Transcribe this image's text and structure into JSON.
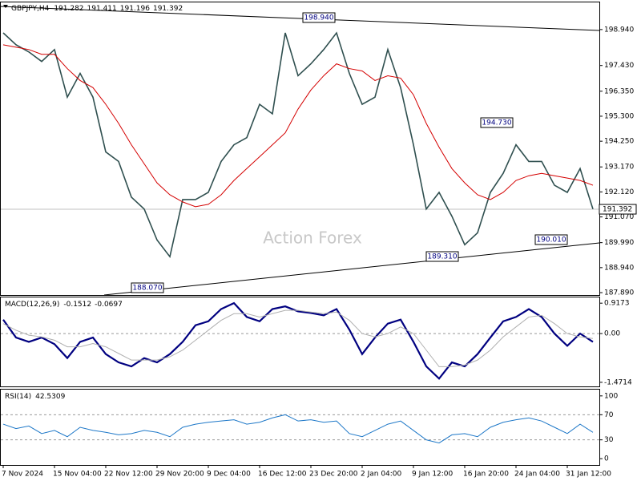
{
  "chart_data": [
    {
      "type": "line",
      "title": "GBPJPY,H4",
      "ohlc": [
        191.282,
        191.411,
        191.196,
        191.392
      ],
      "categories": [
        "7 Nov 2024",
        null,
        null,
        null,
        "15 Nov 04:00",
        null,
        null,
        null,
        "22 Nov 12:00",
        null,
        null,
        null,
        "29 Nov 20:00",
        null,
        null,
        null,
        "9 Dec 04:00",
        null,
        null,
        null,
        "16 Dec 12:00",
        null,
        null,
        null,
        "23 Dec 20:00",
        null,
        null,
        null,
        "2 Jan 04:00",
        null,
        null,
        null,
        "9 Jan 12:00",
        null,
        null,
        null,
        "16 Jan 20:00",
        null,
        null,
        null,
        "24 Jan 04:00",
        null,
        null,
        null,
        "31 Jan 12:00",
        null,
        null
      ],
      "series": [
        {
          "color": "#2f4f4f",
          "values": [
            198.8,
            198.3,
            198.0,
            197.6,
            198.1,
            196.1,
            197.1,
            196.1,
            193.8,
            193.4,
            191.9,
            191.4,
            190.1,
            189.4,
            191.8,
            191.8,
            192.1,
            193.4,
            194.1,
            194.4,
            195.8,
            195.4,
            198.8,
            197.0,
            197.5,
            198.1,
            198.8,
            197.1,
            195.8,
            196.1,
            198.1,
            196.5,
            194.1,
            191.4,
            192.1,
            191.1,
            189.9,
            190.4,
            192.1,
            192.9,
            194.1,
            193.4,
            193.4,
            192.4,
            192.1,
            193.1,
            191.4
          ]
        },
        {
          "color": "#d40000",
          "values": [
            198.3,
            198.2,
            198.1,
            197.9,
            197.9,
            197.3,
            196.8,
            196.5,
            195.8,
            195.0,
            194.1,
            193.3,
            192.5,
            192.0,
            191.7,
            191.5,
            191.6,
            192.0,
            192.6,
            193.1,
            193.6,
            194.1,
            194.6,
            195.6,
            196.4,
            197.0,
            197.5,
            197.3,
            197.2,
            196.8,
            197.0,
            196.9,
            196.2,
            195.0,
            194.0,
            193.1,
            192.5,
            192.0,
            191.8,
            192.1,
            192.6,
            192.8,
            192.9,
            192.8,
            192.7,
            192.6,
            192.4
          ]
        }
      ],
      "ylim": [
        187.79,
        200.08
      ],
      "yticks": [
        {
          "value": 198.94,
          "label": "198.940"
        },
        {
          "value": 197.43,
          "label": "197.430"
        },
        {
          "value": 196.35,
          "label": "196.350"
        },
        {
          "value": 195.3,
          "label": "195.300"
        },
        {
          "value": 194.25,
          "label": "194.250"
        },
        {
          "value": 193.17,
          "label": "193.170"
        },
        {
          "value": 192.12,
          "label": "192.120"
        },
        {
          "value": 191.07,
          "label": "191.070"
        },
        {
          "value": 189.99,
          "label": "189.990"
        },
        {
          "value": 188.94,
          "label": "188.940"
        },
        {
          "value": 187.89,
          "label": "187.890"
        }
      ],
      "current_price": {
        "value": 191.392,
        "label": "191.392"
      },
      "annotations": [
        {
          "value": 198.94,
          "label": "198.940"
        },
        {
          "value": 188.07,
          "label": "188.070"
        },
        {
          "value": 194.73,
          "label": "194.730"
        },
        {
          "value": 190.01,
          "label": "190.010"
        },
        {
          "value": 189.31,
          "label": "189.310"
        }
      ],
      "watermark": "Action Forex"
    },
    {
      "type": "line",
      "title": "MACD(12,26,9)",
      "readings": [
        -0.1512,
        -0.0697
      ],
      "series": [
        {
          "color": "#000080",
          "values": [
            0.42,
            -0.12,
            -0.25,
            -0.12,
            -0.32,
            -0.74,
            -0.25,
            -0.12,
            -0.62,
            -0.87,
            -0.99,
            -0.74,
            -0.87,
            -0.62,
            -0.25,
            0.25,
            0.37,
            0.74,
            0.92,
            0.5,
            0.37,
            0.74,
            0.82,
            0.67,
            0.62,
            0.55,
            0.74,
            0.12,
            -0.62,
            -0.12,
            0.3,
            0.42,
            -0.25,
            -0.99,
            -1.36,
            -0.87,
            -0.99,
            -0.62,
            -0.12,
            0.37,
            0.5,
            0.74,
            0.5,
            0.0,
            -0.37,
            0.0,
            -0.25
          ]
        },
        {
          "color": "#b0b0b0",
          "values": [
            0.3,
            0.1,
            -0.05,
            -0.1,
            -0.2,
            -0.4,
            -0.4,
            -0.3,
            -0.4,
            -0.6,
            -0.8,
            -0.8,
            -0.8,
            -0.7,
            -0.5,
            -0.2,
            0.1,
            0.4,
            0.6,
            0.6,
            0.5,
            0.6,
            0.7,
            0.7,
            0.65,
            0.6,
            0.65,
            0.4,
            0.0,
            -0.1,
            0.0,
            0.2,
            0.0,
            -0.5,
            -1.0,
            -1.0,
            -0.95,
            -0.8,
            -0.5,
            -0.1,
            0.2,
            0.5,
            0.55,
            0.3,
            0.0,
            -0.1,
            -0.15
          ]
        }
      ],
      "ylim": [
        -1.595,
        1.091
      ],
      "yticks": [
        0.9173,
        {
          "value": 0,
          "label": "0.00"
        },
        -1.4714
      ]
    },
    {
      "type": "line",
      "title": "RSI(14)",
      "readings": [
        42.5309
      ],
      "series": [
        {
          "color": "#1e78c8",
          "values": [
            55,
            48,
            52,
            40,
            45,
            35,
            50,
            45,
            42,
            38,
            40,
            45,
            42,
            35,
            50,
            55,
            58,
            60,
            62,
            55,
            58,
            65,
            70,
            60,
            62,
            58,
            60,
            40,
            35,
            45,
            55,
            60,
            45,
            30,
            25,
            38,
            40,
            35,
            50,
            58,
            62,
            65,
            60,
            50,
            40,
            55,
            42
          ]
        }
      ],
      "ylim": [
        -10,
        110
      ],
      "yticks": [
        100,
        70,
        30,
        0
      ],
      "levels": [
        70,
        30
      ]
    }
  ]
}
